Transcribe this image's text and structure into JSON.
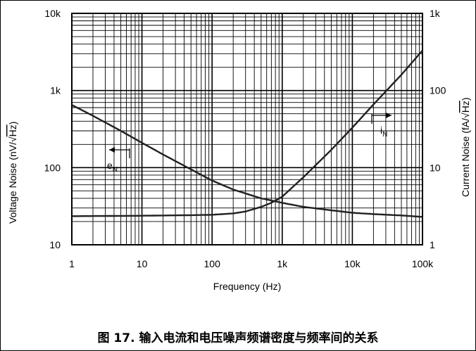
{
  "chart_data": {
    "type": "line",
    "xlabel": "Frequency (Hz)",
    "ylabel_left": "Voltage Noise (nV/√Hz)",
    "ylabel_left_prefix": "Voltage Noise (nV/",
    "ylabel_left_radicand": "Hz",
    "ylabel_left_suffix": ")",
    "ylabel_right": "Current Noise (fA/√Hz)",
    "ylabel_right_prefix": "Current Noise (fA/",
    "ylabel_right_radicand": "Hz",
    "ylabel_right_suffix": ")",
    "x_scale": "log",
    "y_scale": "log",
    "xlim": [
      1,
      100000
    ],
    "ylim_left": [
      10,
      10000
    ],
    "ylim_right": [
      1,
      1000
    ],
    "grid": true,
    "x_ticks": [
      {
        "value": 1,
        "label": "1"
      },
      {
        "value": 10,
        "label": "10"
      },
      {
        "value": 100,
        "label": "100"
      },
      {
        "value": 1000,
        "label": "1k"
      },
      {
        "value": 10000,
        "label": "10k"
      },
      {
        "value": 100000,
        "label": "100k"
      }
    ],
    "y_left_ticks": [
      {
        "value": 10,
        "label": "10"
      },
      {
        "value": 100,
        "label": "100"
      },
      {
        "value": 1000,
        "label": "1k"
      },
      {
        "value": 10000,
        "label": "10k"
      }
    ],
    "y_right_ticks": [
      {
        "value": 1,
        "label": "1"
      },
      {
        "value": 10,
        "label": "10"
      },
      {
        "value": 100,
        "label": "100"
      },
      {
        "value": 1000,
        "label": "1k"
      }
    ],
    "series": [
      {
        "name": "eN",
        "label_main": "e",
        "label_sub": "N",
        "axis": "left",
        "color": "#231f20",
        "x": [
          1,
          2,
          5,
          10,
          20,
          50,
          100,
          200,
          500,
          1000,
          2000,
          5000,
          10000,
          20000,
          50000,
          100000
        ],
        "y": [
          650,
          470,
          300,
          210,
          148,
          95,
          68,
          52,
          40,
          35,
          31,
          28,
          26,
          25,
          24,
          23
        ]
      },
      {
        "name": "iN",
        "label_main": "i",
        "label_sub": "N",
        "axis": "right",
        "color": "#231f20",
        "x": [
          1,
          10,
          50,
          100,
          200,
          300,
          500,
          700,
          1000,
          2000,
          5000,
          10000,
          20000,
          50000,
          100000
        ],
        "y": [
          2.35,
          2.38,
          2.42,
          2.45,
          2.55,
          2.7,
          3.1,
          3.5,
          4.2,
          7.5,
          17,
          33,
          66,
          160,
          330
        ]
      }
    ]
  },
  "caption": "图 17. 输入电流和电压噪声频谱密度与频率间的关系"
}
